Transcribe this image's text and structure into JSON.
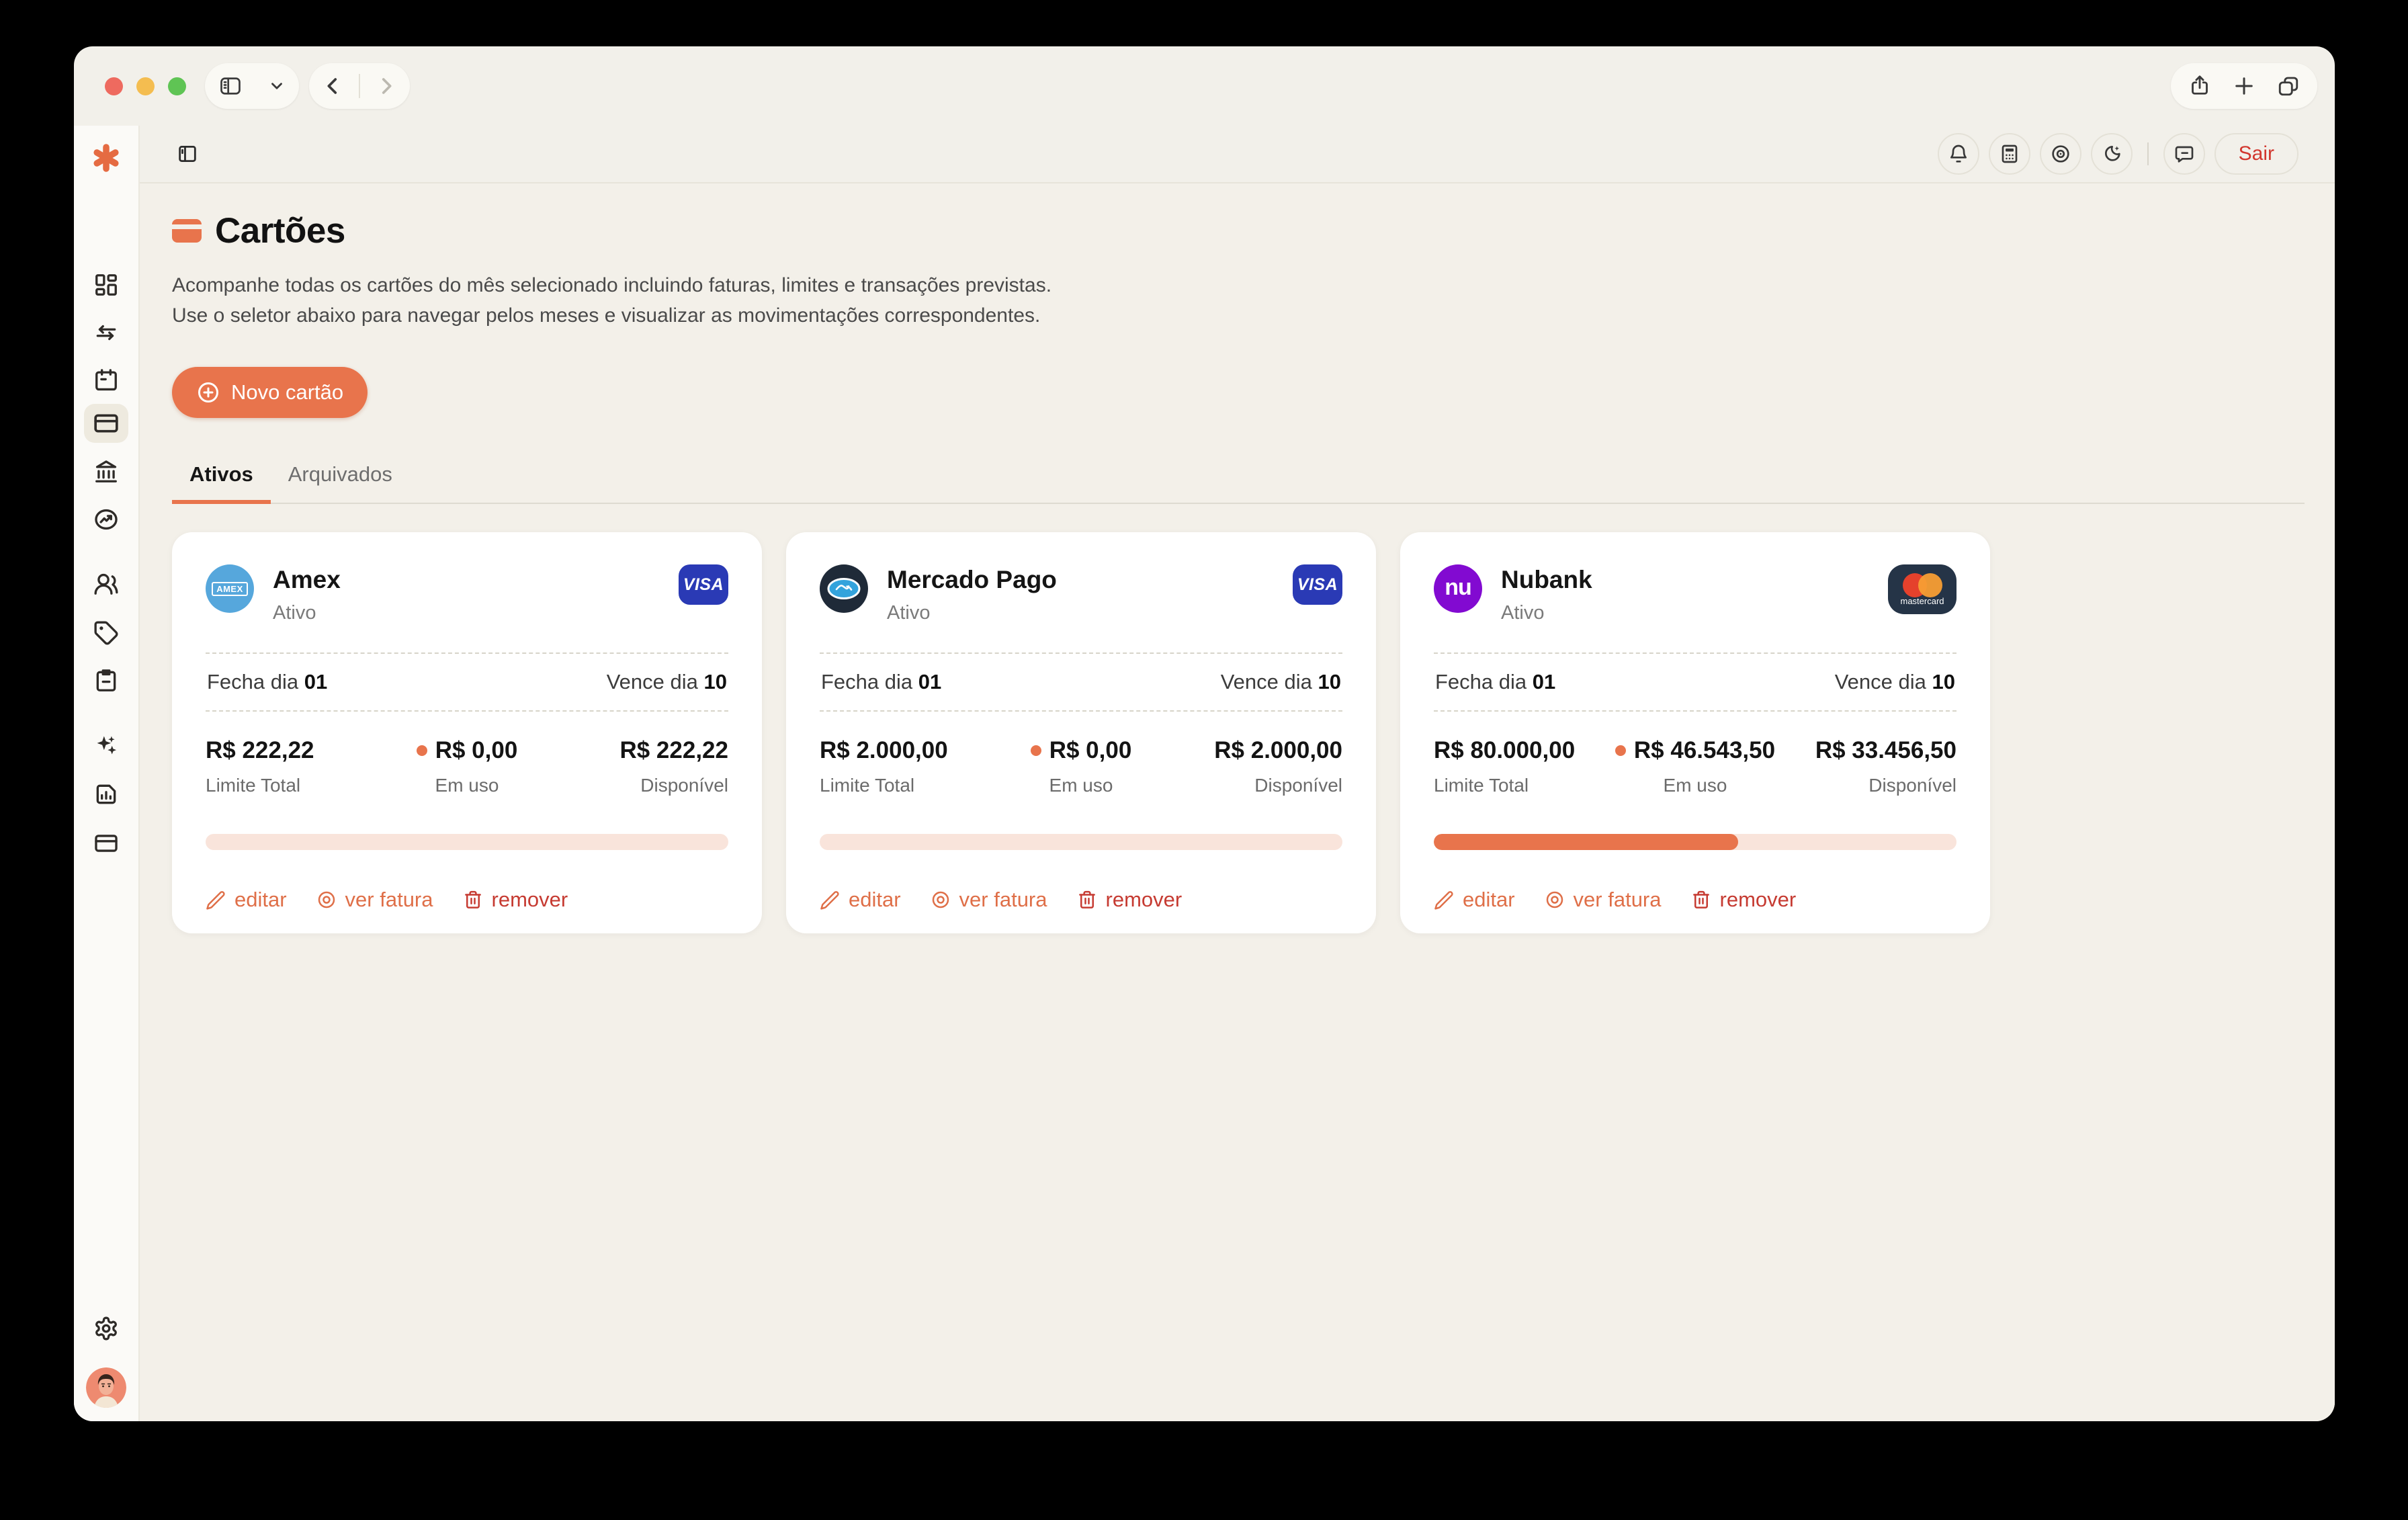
{
  "titlebar": {
    "icons": [
      "panel-left-icon",
      "chevron-down-icon",
      "chevron-left-icon",
      "chevron-right-icon",
      "share-icon",
      "plus-icon",
      "tabs-icon"
    ]
  },
  "appbar": {
    "icons": [
      "panel-left-icon",
      "bell-icon",
      "calculator-icon",
      "eye-icon",
      "moon-stars-icon",
      "chat-icon"
    ],
    "logout_label": "Sair"
  },
  "sidebar": {
    "logo_icon": "asterisk-logo",
    "item_icons": [
      "dashboard-icon",
      "transfer-arrows-icon",
      "calendar-icon",
      "credit-card-icon",
      "bank-icon",
      "trend-circle-icon",
      "users-icon",
      "tag-icon",
      "clipboard-icon",
      "sparkles-icon",
      "report-chart-icon",
      "card-outline-icon",
      "gear-icon",
      "user-avatar"
    ]
  },
  "page": {
    "title": "Cartões",
    "description": "Acompanhe todas os cartões do mês selecionado incluindo faturas, limites e transações previstas. Use o seletor abaixo para navegar pelos meses e visualizar as movimentações correspondentes.",
    "new_card_label": "Novo cartão",
    "tabs": [
      {
        "label": "Ativos",
        "active": true
      },
      {
        "label": "Arquivados",
        "active": false
      }
    ],
    "labels": {
      "close": "Fecha dia",
      "due": "Vence dia",
      "limit": "Limite Total",
      "in_use": "Em uso",
      "available": "Disponível"
    },
    "actions": {
      "edit": "editar",
      "view": "ver fatura",
      "remove": "remover"
    },
    "cards": [
      {
        "name": "Amex",
        "status": "Ativo",
        "avatar_text": "AMEX",
        "brand": "visa",
        "brand_label": "VISA",
        "close_day": "01",
        "due_day": "10",
        "limit": "R$ 222,22",
        "in_use": "R$ 0,00",
        "available": "R$ 222,22",
        "usage_pct": 0
      },
      {
        "name": "Mercado Pago",
        "status": "Ativo",
        "brand": "visa",
        "brand_label": "VISA",
        "close_day": "01",
        "due_day": "10",
        "limit": "R$ 2.000,00",
        "in_use": "R$ 0,00",
        "available": "R$ 2.000,00",
        "usage_pct": 0
      },
      {
        "name": "Nubank",
        "status": "Ativo",
        "avatar_text": "nu",
        "brand": "mastercard",
        "brand_label": "mastercard",
        "close_day": "01",
        "due_day": "10",
        "limit": "R$ 80.000,00",
        "in_use": "R$ 46.543,50",
        "available": "R$ 33.456,50",
        "usage_pct": 58.2
      }
    ]
  },
  "colors": {
    "accent": "#e8744c",
    "danger": "#c63b32",
    "visa_blue": "#2a3ab5",
    "mastercard_navy": "#253447",
    "nubank_purple": "#820ad1",
    "amex_blue": "#56a7dc",
    "progress_track": "#f9e4db",
    "window_bg": "#f2f0ea",
    "content_bg": "#f3f0e9"
  }
}
